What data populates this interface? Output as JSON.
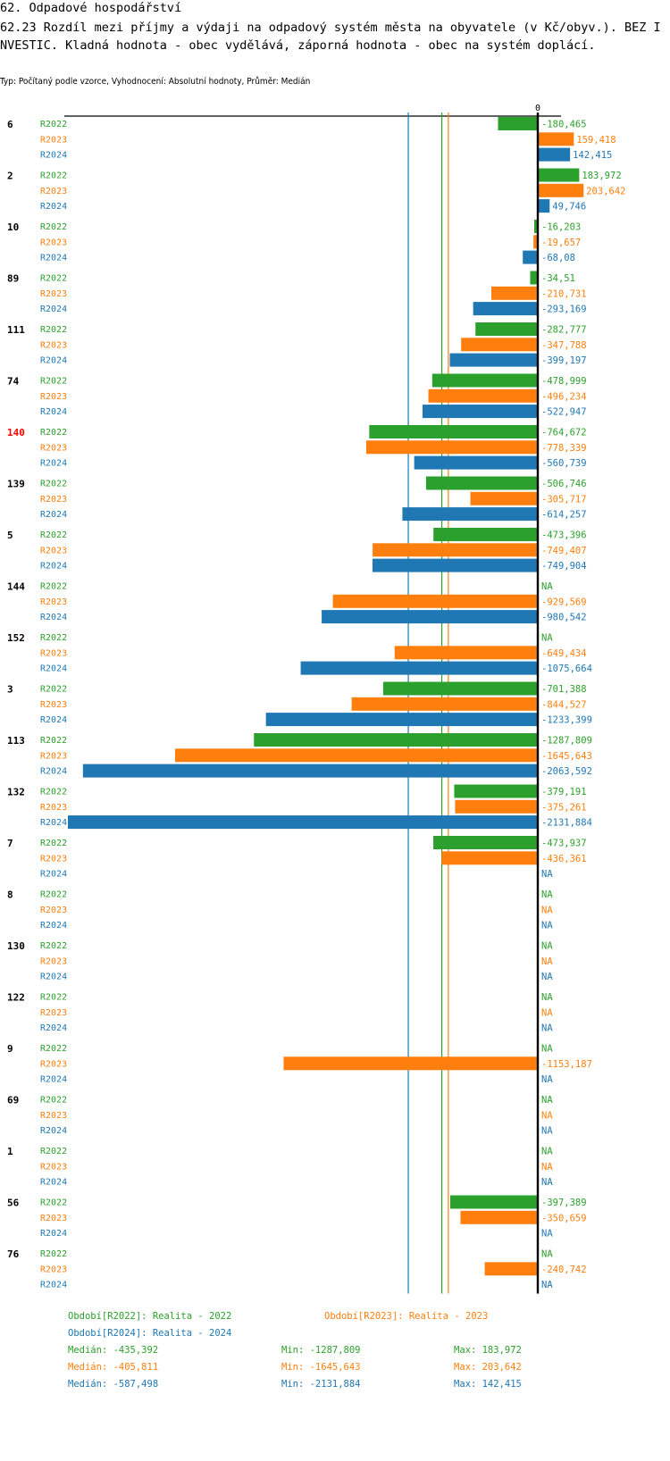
{
  "header": {
    "title": "62. Odpadové hospodářství",
    "subtitle_main": "62.23 Rozdíl mezi příjmy a výdaji na odpadový systém města na obyvatele (v Kč/obyv.). BEZ INVESTIC. Kladná hodnota - obec vydělává, záporná hodnota - obec na systém doplácí.",
    "meta": "Typ: Počítaný podle vzorce, Vyhodnocení: Absolutní hodnoty, Průměr: Medián"
  },
  "colors": {
    "R2022": "#2ca02c",
    "R2023": "#ff7f0e",
    "R2024": "#1f77b4",
    "highlight_group": "#ff0000",
    "axis": "#000000"
  },
  "chart_data": {
    "type": "bar",
    "orientation": "horizontal",
    "zero_tick_label": "0",
    "series_names": [
      "R2022",
      "R2023",
      "R2024"
    ],
    "highlighted_category": "140",
    "categories": [
      "6",
      "2",
      "10",
      "89",
      "111",
      "74",
      "140",
      "139",
      "5",
      "144",
      "152",
      "3",
      "113",
      "132",
      "7",
      "8",
      "130",
      "122",
      "9",
      "69",
      "1",
      "56",
      "76"
    ],
    "series": [
      {
        "name": "R2022",
        "values": [
          -180.465,
          183.972,
          -16.203,
          -34.51,
          -282.777,
          -478.999,
          -764.672,
          -506.746,
          -473.396,
          null,
          null,
          -701.388,
          -1287.809,
          -379.191,
          -473.937,
          null,
          null,
          null,
          null,
          null,
          null,
          -397.389,
          null
        ],
        "labels": [
          "-180,465",
          "183,972",
          "-16,203",
          "-34,51",
          "-282,777",
          "-478,999",
          "-764,672",
          "-506,746",
          "-473,396",
          "NA",
          "NA",
          "-701,388",
          "-1287,809",
          "-379,191",
          "-473,937",
          "NA",
          "NA",
          "NA",
          "NA",
          "NA",
          "NA",
          "-397,389",
          "NA"
        ]
      },
      {
        "name": "R2023",
        "values": [
          159.418,
          203.642,
          -19.657,
          -210.731,
          -347.788,
          -496.234,
          -778.339,
          -305.717,
          -749.407,
          -929.569,
          -649.434,
          -844.527,
          -1645.643,
          -375.261,
          -436.361,
          null,
          null,
          null,
          -1153.187,
          null,
          null,
          -350.659,
          -240.742
        ],
        "labels": [
          "159,418",
          "203,642",
          "-19,657",
          "-210,731",
          "-347,788",
          "-496,234",
          "-778,339",
          "-305,717",
          "-749,407",
          "-929,569",
          "-649,434",
          "-844,527",
          "-1645,643",
          "-375,261",
          "-436,361",
          "NA",
          "NA",
          "NA",
          "-1153,187",
          "NA",
          "NA",
          "-350,659",
          "-240,742"
        ]
      },
      {
        "name": "R2024",
        "values": [
          142.415,
          49.746,
          -68.08,
          -293.169,
          -399.197,
          -522.947,
          -560.739,
          -614.257,
          -749.904,
          -980.542,
          -1075.664,
          -1233.399,
          -2063.592,
          -2131.884,
          null,
          null,
          null,
          null,
          null,
          null,
          null,
          null,
          null
        ],
        "labels": [
          "142,415",
          "49,746",
          "-68,08",
          "-293,169",
          "-399,197",
          "-522,947",
          "-560,739",
          "-614,257",
          "-749,904",
          "-980,542",
          "-1075,664",
          "-1233,399",
          "-2063,592",
          "-2131,884",
          "NA",
          "NA",
          "NA",
          "NA",
          "NA",
          "NA",
          "NA",
          "NA",
          "NA"
        ]
      }
    ],
    "medians": {
      "R2022": -435.392,
      "R2023": -405.811,
      "R2024": -587.498
    },
    "xlim": [
      -2131.884,
      203.642
    ]
  },
  "legend": {
    "periods": [
      {
        "series": "R2022",
        "text": "Období[R2022]: Realita - 2022"
      },
      {
        "series": "R2023",
        "text": "Období[R2023]: Realita - 2023"
      },
      {
        "series": "R2024",
        "text": "Období[R2024]: Realita - 2024"
      }
    ],
    "stats": [
      {
        "series": "R2022",
        "median": "Medián: -435,392",
        "min": "Min: -1287,809",
        "max": "Max: 183,972"
      },
      {
        "series": "R2023",
        "median": "Medián: -405,811",
        "min": "Min: -1645,643",
        "max": "Max: 203,642"
      },
      {
        "series": "R2024",
        "median": "Medián: -587,498",
        "min": "Min: -2131,884",
        "max": "Max: 142,415"
      }
    ]
  }
}
